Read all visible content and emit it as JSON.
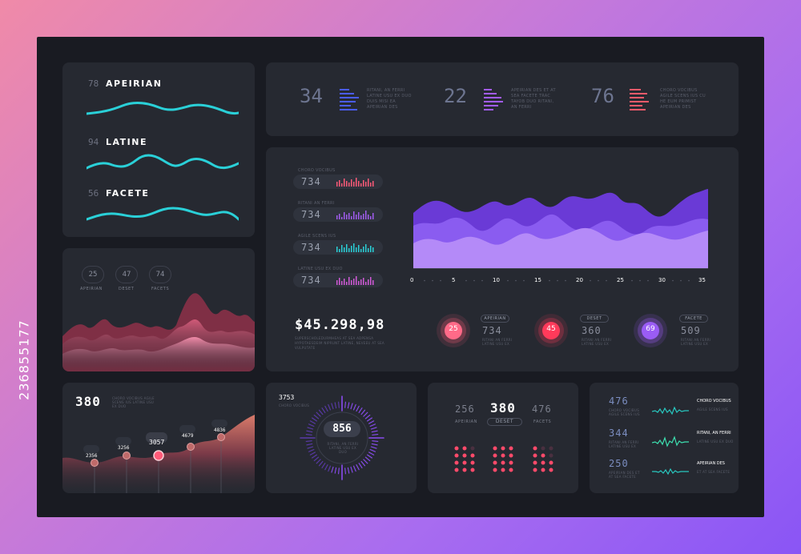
{
  "side_code": "236855177",
  "waves": {
    "items": [
      {
        "num": "78",
        "label": "APEIRIAN"
      },
      {
        "num": "94",
        "label": "LATINE"
      },
      {
        "num": "56",
        "label": "FACETE"
      }
    ]
  },
  "ridge": {
    "stats": [
      {
        "num": "25",
        "label": "APEIRIAN"
      },
      {
        "num": "47",
        "label": "DESET"
      },
      {
        "num": "74",
        "label": "FACETS"
      }
    ]
  },
  "top_stats": [
    {
      "num": "34",
      "text": "RITANI, AN FERRI LATINE USU EX DUO DUIS MISI EA APEIRIAN DES"
    },
    {
      "num": "22",
      "text": "APEIRIAN DES ET AT SEA FACETE TRAC TAYOB DUO RITANI, AN FERRI"
    },
    {
      "num": "76",
      "text": "CHORO VOCIBUS AGILE SCENS IUS CU HE EUM PRIMIST APEIRIAN DES"
    }
  ],
  "main": {
    "rows": [
      {
        "caption": "CHORO VOCIBUS",
        "value": "734"
      },
      {
        "caption": "RITANI AN FERRI",
        "value": "734"
      },
      {
        "caption": "AGILE SCENS IUS",
        "value": "734"
      },
      {
        "caption": "LATINE USU EX DUO",
        "value": "734"
      }
    ],
    "x_ticks": [
      "0",
      "5",
      "10",
      "15",
      "20",
      "25",
      "30",
      "35"
    ],
    "amount": "$45.298,98",
    "amount_caption": "SUPERSCHOLEDURMHEAS AT SEA ADPENSA HYPOTAESDEIM NIPRUNT LATINE, NEVEEU AT SEA VULPUTATE",
    "gauges": [
      {
        "num": "25",
        "tag": "APEIRIAN",
        "value": "734",
        "caption": "RITANI AN FERRI LATINE USU EX",
        "color": "#ff5a78"
      },
      {
        "num": "45",
        "tag": "DESET",
        "value": "360",
        "caption": "RITANI AN FERRI LATINE USU EX",
        "color": "#ff3a5a"
      },
      {
        "num": "69",
        "tag": "FACETE",
        "value": "509",
        "caption": "RITANI AN FERRI LATINE USU EX",
        "color": "#9a5cf5"
      }
    ]
  },
  "area_panel": {
    "title": "380",
    "caption": "CHORO VOCIBUS AGILE SCENS IUS LATINE USU EX DUO",
    "points": [
      "2356",
      "3256",
      "3057",
      "4679",
      "4836"
    ]
  },
  "radial": {
    "top_num": "3753",
    "top_caption": "CHORO VOCIBUS",
    "center": "856",
    "caption": "RITANI, AN FERRI LATINE USU EX DUO"
  },
  "dots_panel": {
    "left_num": "256",
    "center_num": "380",
    "right_num": "476",
    "left_label": "APEIRIAN",
    "center_label": "DESET",
    "right_label": "FACETS"
  },
  "list_panel": {
    "items": [
      {
        "num": "476",
        "caption": "CHORO VOCIBUS AGILE SCENS IUS",
        "title": "CHORO VOCIBUS",
        "sub": "AGILE SCENS IUS",
        "color": "#28c8c0"
      },
      {
        "num": "344",
        "caption": "RITANI AN FERRI LATINE USU EX",
        "title": "RITANI, AN FERRI",
        "sub": "LATINE USU EX DUO",
        "color": "#3de0b0"
      },
      {
        "num": "250",
        "caption": "APEIRIAN DES ET AT SEA FACETE",
        "title": "APEIRIAN DES",
        "sub": "ET AT SEA FACETE",
        "color": "#28c8c0"
      }
    ]
  },
  "colors": {
    "teal": "#2ad0d8",
    "pink": "#ff5a78",
    "purple": "#9a5cf5",
    "panel": "#262931",
    "frame": "#191b22"
  }
}
